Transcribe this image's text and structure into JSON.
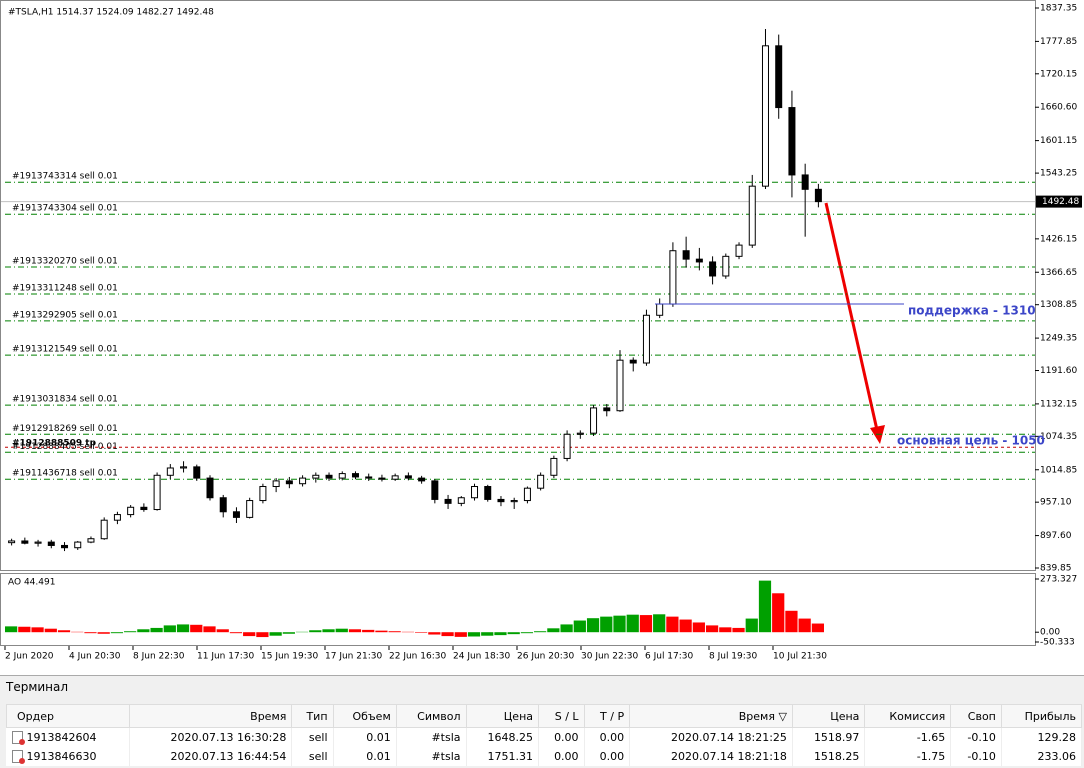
{
  "chart_data": {
    "type": "candlestick",
    "header": "#TSLA,H1  1514.37 1524.09 1482.27 1492.48",
    "ylim": [
      839.85,
      1837.35
    ],
    "yticks": [
      1837.35,
      1777.85,
      1720.15,
      {
        "value": 1660.6,
        "label": "1660.60"
      },
      1601.15,
      1543.25,
      1426.15,
      1366.65,
      1308.85,
      1249.35,
      {
        "value": 1191.6,
        "label": "1191.60"
      },
      1132.15,
      1074.35,
      1014.85,
      {
        "value": 957.1,
        "label": "957.10"
      },
      {
        "value": 897.6,
        "label": "897.60"
      },
      839.85
    ],
    "current_price": 1492.48,
    "candles": [
      [
        885,
        892,
        880,
        888
      ],
      [
        888,
        894,
        882,
        884
      ],
      [
        884,
        890,
        878,
        886
      ],
      [
        886,
        890,
        875,
        880
      ],
      [
        880,
        886,
        870,
        876
      ],
      [
        876,
        888,
        872,
        886
      ],
      [
        886,
        896,
        884,
        892
      ],
      [
        892,
        930,
        890,
        925
      ],
      [
        925,
        940,
        918,
        935
      ],
      [
        935,
        952,
        930,
        948
      ],
      [
        948,
        955,
        940,
        944
      ],
      [
        944,
        1010,
        942,
        1005
      ],
      [
        1005,
        1025,
        998,
        1018
      ],
      [
        1018,
        1030,
        1010,
        1020
      ],
      [
        1020,
        1024,
        995,
        1000
      ],
      [
        1000,
        1005,
        960,
        965
      ],
      [
        965,
        970,
        930,
        940
      ],
      [
        940,
        948,
        920,
        930
      ],
      [
        930,
        965,
        928,
        960
      ],
      [
        960,
        990,
        955,
        985
      ],
      [
        985,
        1000,
        975,
        995
      ],
      [
        995,
        1002,
        982,
        990
      ],
      [
        990,
        1005,
        985,
        1000
      ],
      [
        1000,
        1010,
        992,
        1005
      ],
      [
        1005,
        1010,
        995,
        1000
      ],
      [
        1000,
        1012,
        996,
        1008
      ],
      [
        1008,
        1012,
        998,
        1002
      ],
      [
        1002,
        1008,
        995,
        1000
      ],
      [
        1000,
        1006,
        994,
        998
      ],
      [
        998,
        1008,
        995,
        1004
      ],
      [
        1004,
        1010,
        996,
        1000
      ],
      [
        1000,
        1004,
        990,
        995
      ],
      [
        995,
        998,
        955,
        962
      ],
      [
        962,
        970,
        945,
        955
      ],
      [
        955,
        968,
        950,
        965
      ],
      [
        965,
        990,
        960,
        985
      ],
      [
        985,
        988,
        958,
        962
      ],
      [
        962,
        968,
        950,
        958
      ],
      [
        958,
        965,
        945,
        960
      ],
      [
        960,
        985,
        955,
        982
      ],
      [
        982,
        1010,
        978,
        1005
      ],
      [
        1005,
        1040,
        1000,
        1035
      ],
      [
        1035,
        1085,
        1030,
        1078
      ],
      [
        1078,
        1085,
        1070,
        1080
      ],
      [
        1080,
        1130,
        1075,
        1125
      ],
      [
        1125,
        1132,
        1110,
        1120
      ],
      [
        1120,
        1228,
        1118,
        1210
      ],
      [
        1210,
        1215,
        1190,
        1205
      ],
      [
        1205,
        1300,
        1200,
        1290
      ],
      [
        1290,
        1320,
        1285,
        1310
      ],
      [
        1310,
        1420,
        1305,
        1405
      ],
      [
        1405,
        1430,
        1375,
        1390
      ],
      [
        1390,
        1410,
        1370,
        1385
      ],
      [
        1385,
        1395,
        1345,
        1360
      ],
      [
        1360,
        1400,
        1355,
        1395
      ],
      [
        1395,
        1420,
        1390,
        1415
      ],
      [
        1415,
        1540,
        1410,
        1520
      ],
      [
        1520,
        1800,
        1515,
        1770
      ],
      [
        1770,
        1790,
        1640,
        1660
      ],
      [
        1660,
        1690,
        1500,
        1540
      ],
      [
        1540,
        1560,
        1430,
        1514.37
      ],
      [
        1514.37,
        1524.09,
        1482.27,
        1492.48
      ]
    ],
    "up_fill": "#ffffff",
    "down_fill": "#000000",
    "orders": [
      {
        "label": "#1913743314 sell 0.01",
        "price": 1527
      },
      {
        "label": "#1913743304 sell 0.01",
        "price": 1470
      },
      {
        "label": "#1913320270 sell 0.01",
        "price": 1376
      },
      {
        "label": "#1913311248 sell 0.01",
        "price": 1328
      },
      {
        "label": "#1913292905 sell 0.01",
        "price": 1280
      },
      {
        "label": "#1913121549 sell 0.01",
        "price": 1219
      },
      {
        "label": "#1913031834 sell 0.01",
        "price": 1130
      },
      {
        "label": "#1912918269 sell 0.01",
        "price": 1078
      },
      {
        "label": "#1912888405 sell 0.01",
        "price": 1046
      },
      {
        "label": "#1911436718 sell 0.01",
        "price": 998
      }
    ],
    "order_color": "#008000",
    "tp": {
      "label": "#1912888509 tp",
      "price": 1055,
      "color": "#c00000"
    },
    "support": {
      "label": "поддержка - 1310",
      "price": 1310,
      "color": "#3c46c8"
    },
    "target": {
      "label": "основная цель - 1050",
      "color": "#3c46c8"
    },
    "ao": {
      "label": "AO 44.491",
      "ylim": [
        -50.333,
        273.327
      ],
      "yticks": [
        273.327,
        {
          "value": 0,
          "label": "0.00"
        },
        -50.333
      ],
      "up_color": "#00a000",
      "down_color": "#ff0000",
      "values": [
        30,
        28,
        25,
        18,
        10,
        2,
        -5,
        -8,
        -5,
        5,
        15,
        22,
        35,
        40,
        38,
        30,
        15,
        -5,
        -20,
        -25,
        -18,
        -8,
        2,
        10,
        15,
        18,
        15,
        12,
        8,
        5,
        2,
        -3,
        -12,
        -20,
        -24,
        -22,
        -18,
        -15,
        -10,
        -5,
        5,
        20,
        40,
        60,
        72,
        80,
        85,
        90,
        88,
        92,
        80,
        65,
        50,
        35,
        25,
        22,
        70,
        265,
        200,
        110,
        70,
        44.491
      ]
    },
    "x_labels": [
      "2 Jun 2020",
      "4 Jun 20:30",
      "8 Jun 22:30",
      "11 Jun 17:30",
      "15 Jun 19:30",
      "17 Jun 21:30",
      "22 Jun 16:30",
      "24 Jun 18:30",
      "26 Jun 20:30",
      "30 Jun 22:30",
      "6 Jul 17:30",
      "8 Jul 19:30",
      "10 Jul 21:30"
    ]
  },
  "terminal": {
    "title": "Терминал",
    "columns": [
      "Ордер",
      "Время",
      "Тип",
      "Объем",
      "Символ",
      "Цена",
      "S / L",
      "T / P",
      "Время ▽",
      "Цена",
      "Комиссия",
      "Своп",
      "Прибыль"
    ],
    "rows": [
      [
        "1913842604",
        "2020.07.13 16:30:28",
        "sell",
        "0.01",
        "#tsla",
        "1648.25",
        "0.00",
        "0.00",
        "2020.07.14 18:21:25",
        "1518.97",
        "-1.65",
        "-0.10",
        "129.28"
      ],
      [
        "1913846630",
        "2020.07.13 16:44:54",
        "sell",
        "0.01",
        "#tsla",
        "1751.31",
        "0.00",
        "0.00",
        "2020.07.14 18:21:18",
        "1518.25",
        "-1.75",
        "-0.10",
        "233.06"
      ]
    ]
  }
}
